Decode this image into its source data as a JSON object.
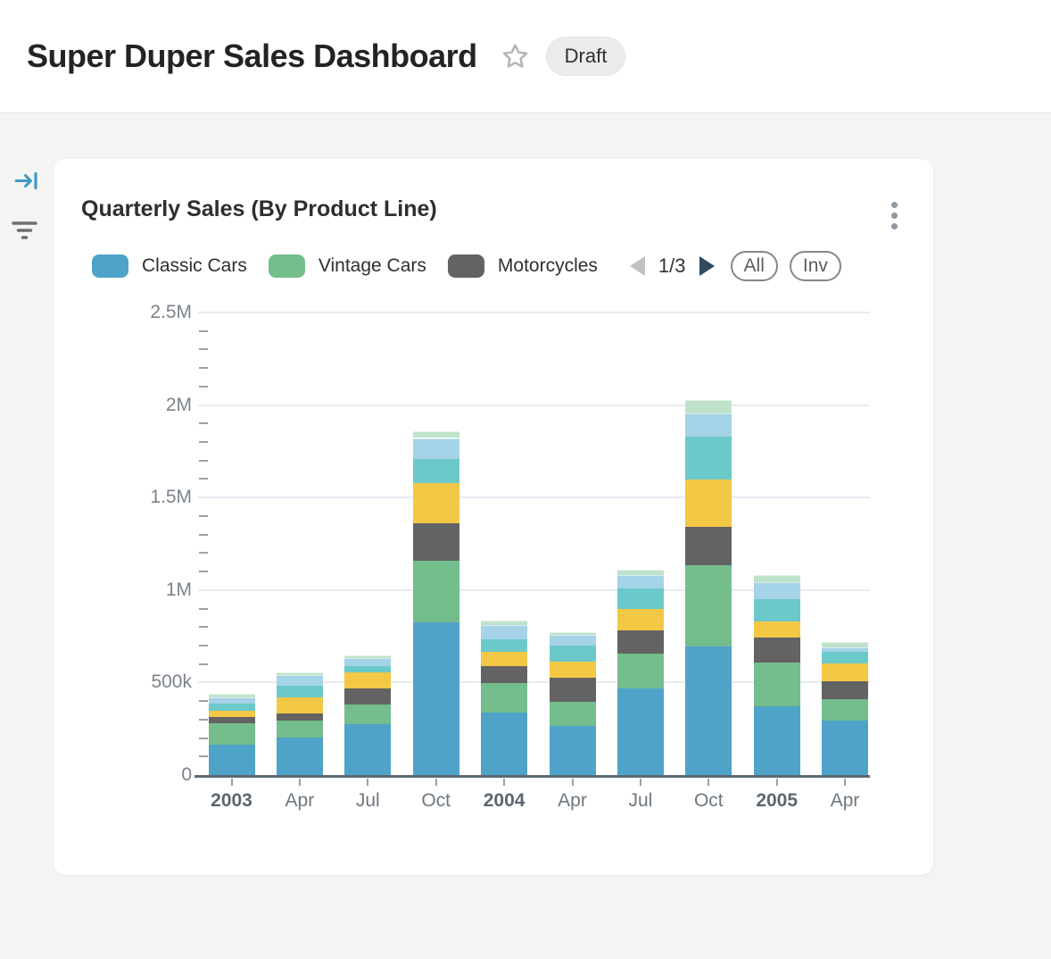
{
  "header": {
    "title": "Super Duper Sales Dashboard",
    "status_badge": "Draft",
    "star_icon": "star-icon"
  },
  "sidebar": {
    "icons": [
      {
        "name": "collapse-panel-icon",
        "color": "#3e9ac4"
      },
      {
        "name": "filter-icon",
        "color": "#6e6e6e"
      }
    ]
  },
  "card": {
    "title": "Quarterly Sales (By Product Line)",
    "menu_icon": "kebab-menu-icon",
    "legend_pagination": {
      "page_label": "1/3",
      "prev_icon": "prev-page-icon",
      "next_icon": "next-page-icon"
    },
    "legend_buttons": {
      "all": "All",
      "invert": "Inv"
    }
  },
  "chart_data": {
    "type": "bar",
    "stacked": true,
    "title": "Quarterly Sales (By Product Line)",
    "legend_position": "top-left",
    "legend_page": "1/3",
    "legend_visible_entries": [
      "Classic Cars",
      "Vintage Cars",
      "Motorcycles"
    ],
    "grid": "horizontal-major",
    "categories": [
      "2003",
      "Apr",
      "Jul",
      "Oct",
      "2004",
      "Apr",
      "Jul",
      "Oct",
      "2005",
      "Apr"
    ],
    "category_bold": [
      true,
      false,
      false,
      false,
      true,
      false,
      false,
      false,
      true,
      false
    ],
    "series": [
      {
        "name": "Classic Cars",
        "color": "#4fa3c8",
        "values": [
          165000,
          205000,
          276000,
          825000,
          338000,
          266000,
          466000,
          693000,
          371000,
          295000
        ]
      },
      {
        "name": "Vintage Cars",
        "color": "#74bd8c",
        "values": [
          115000,
          88000,
          104000,
          335000,
          161000,
          129000,
          191000,
          440000,
          235000,
          117000
        ]
      },
      {
        "name": "Motorcycles",
        "color": "#636363",
        "values": [
          33000,
          40000,
          88000,
          202000,
          88000,
          129000,
          125000,
          207000,
          135000,
          97000
        ]
      },
      {
        "name": "unlabeled-series-4-yellow",
        "color": "#f3c845",
        "values": [
          35000,
          88000,
          85000,
          218000,
          81000,
          88000,
          118000,
          259000,
          89000,
          94000
        ]
      },
      {
        "name": "unlabeled-series-5-teal",
        "color": "#6cc9c9",
        "values": [
          40000,
          64000,
          35000,
          129000,
          64000,
          88000,
          108000,
          230000,
          122000,
          61000
        ]
      },
      {
        "name": "unlabeled-series-6-lightblue",
        "color": "#a5d3e8",
        "values": [
          32000,
          56000,
          43000,
          113000,
          81000,
          56000,
          73000,
          126000,
          92000,
          28000
        ]
      },
      {
        "name": "unlabeled-series-7-palegreen",
        "color": "#bfe3ca",
        "values": [
          19000,
          16000,
          16000,
          35000,
          24000,
          16000,
          28000,
          73000,
          37000,
          26000
        ]
      }
    ],
    "y_axis": {
      "max": 2500000,
      "minor_tick_step": 100000,
      "ticks": [
        {
          "label": "0",
          "value": 0
        },
        {
          "label": "500k",
          "value": 500000
        },
        {
          "label": "1M",
          "value": 1000000
        },
        {
          "label": "1.5M",
          "value": 1500000
        },
        {
          "label": "2M",
          "value": 2000000
        },
        {
          "label": "2.5M",
          "value": 2500000
        }
      ]
    }
  }
}
